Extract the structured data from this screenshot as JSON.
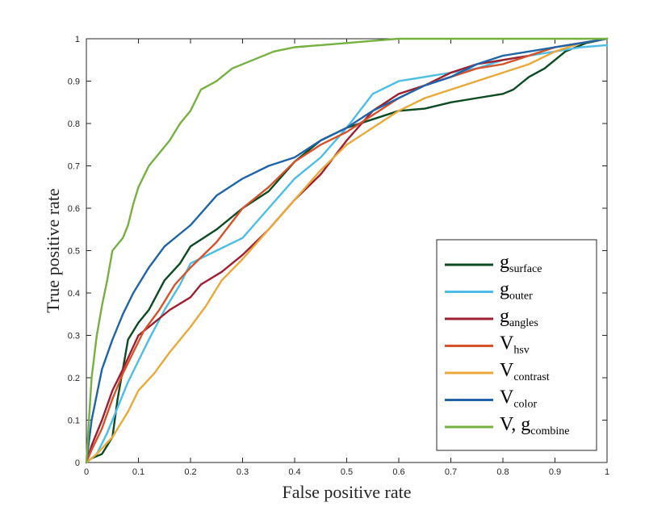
{
  "chart_data": {
    "type": "line",
    "title": "",
    "xlabel": "False positive rate",
    "ylabel": "True positive rate",
    "xlim": [
      0,
      1
    ],
    "ylim": [
      0,
      1
    ],
    "xticks": [
      "0",
      "0.1",
      "0.2",
      "0.3",
      "0.4",
      "0.5",
      "0.6",
      "0.7",
      "0.8",
      "0.9",
      "1"
    ],
    "yticks": [
      "0",
      "0.1",
      "0.2",
      "0.3",
      "0.4",
      "0.5",
      "0.6",
      "0.7",
      "0.8",
      "0.9",
      "1"
    ],
    "grid": false,
    "legend_position": "bottom-right",
    "series": [
      {
        "name": "g",
        "subscript": "surface",
        "color": "#0b4a23",
        "points": [
          [
            0,
            0
          ],
          [
            0.01,
            0.01
          ],
          [
            0.03,
            0.02
          ],
          [
            0.05,
            0.06
          ],
          [
            0.06,
            0.15
          ],
          [
            0.07,
            0.22
          ],
          [
            0.08,
            0.29
          ],
          [
            0.1,
            0.33
          ],
          [
            0.12,
            0.36
          ],
          [
            0.15,
            0.43
          ],
          [
            0.18,
            0.47
          ],
          [
            0.2,
            0.51
          ],
          [
            0.25,
            0.55
          ],
          [
            0.3,
            0.6
          ],
          [
            0.35,
            0.64
          ],
          [
            0.4,
            0.71
          ],
          [
            0.45,
            0.76
          ],
          [
            0.5,
            0.79
          ],
          [
            0.55,
            0.81
          ],
          [
            0.6,
            0.83
          ],
          [
            0.65,
            0.835
          ],
          [
            0.7,
            0.85
          ],
          [
            0.75,
            0.86
          ],
          [
            0.8,
            0.87
          ],
          [
            0.82,
            0.88
          ],
          [
            0.85,
            0.91
          ],
          [
            0.88,
            0.93
          ],
          [
            0.92,
            0.97
          ],
          [
            0.96,
            0.99
          ],
          [
            1,
            1
          ]
        ]
      },
      {
        "name": "g",
        "subscript": "outer",
        "color": "#4dbde6",
        "points": [
          [
            0,
            0
          ],
          [
            0.02,
            0.02
          ],
          [
            0.04,
            0.07
          ],
          [
            0.06,
            0.13
          ],
          [
            0.08,
            0.19
          ],
          [
            0.1,
            0.24
          ],
          [
            0.12,
            0.29
          ],
          [
            0.15,
            0.36
          ],
          [
            0.18,
            0.42
          ],
          [
            0.2,
            0.47
          ],
          [
            0.25,
            0.5
          ],
          [
            0.3,
            0.53
          ],
          [
            0.35,
            0.6
          ],
          [
            0.4,
            0.67
          ],
          [
            0.45,
            0.72
          ],
          [
            0.5,
            0.79
          ],
          [
            0.55,
            0.87
          ],
          [
            0.6,
            0.9
          ],
          [
            0.65,
            0.91
          ],
          [
            0.7,
            0.92
          ],
          [
            0.75,
            0.93
          ],
          [
            0.8,
            0.95
          ],
          [
            0.85,
            0.96
          ],
          [
            0.9,
            0.97
          ],
          [
            0.95,
            0.98
          ],
          [
            1,
            0.985
          ]
        ]
      },
      {
        "name": "g",
        "subscript": "angles",
        "color": "#9e1f30",
        "points": [
          [
            0,
            0
          ],
          [
            0.01,
            0.04
          ],
          [
            0.03,
            0.1
          ],
          [
            0.05,
            0.17
          ],
          [
            0.07,
            0.22
          ],
          [
            0.1,
            0.3
          ],
          [
            0.13,
            0.33
          ],
          [
            0.16,
            0.36
          ],
          [
            0.2,
            0.39
          ],
          [
            0.22,
            0.42
          ],
          [
            0.26,
            0.45
          ],
          [
            0.3,
            0.49
          ],
          [
            0.35,
            0.55
          ],
          [
            0.4,
            0.62
          ],
          [
            0.45,
            0.68
          ],
          [
            0.5,
            0.76
          ],
          [
            0.55,
            0.83
          ],
          [
            0.6,
            0.87
          ],
          [
            0.65,
            0.89
          ],
          [
            0.7,
            0.92
          ],
          [
            0.75,
            0.94
          ],
          [
            0.8,
            0.95
          ],
          [
            0.85,
            0.96
          ],
          [
            0.9,
            0.98
          ],
          [
            0.95,
            0.99
          ],
          [
            1,
            1
          ]
        ]
      },
      {
        "name": "V",
        "subscript": "hsv",
        "color": "#d4532a",
        "points": [
          [
            0,
            0
          ],
          [
            0.01,
            0.03
          ],
          [
            0.03,
            0.08
          ],
          [
            0.05,
            0.15
          ],
          [
            0.07,
            0.21
          ],
          [
            0.09,
            0.26
          ],
          [
            0.11,
            0.31
          ],
          [
            0.14,
            0.36
          ],
          [
            0.17,
            0.42
          ],
          [
            0.2,
            0.46
          ],
          [
            0.25,
            0.52
          ],
          [
            0.3,
            0.6
          ],
          [
            0.35,
            0.65
          ],
          [
            0.4,
            0.71
          ],
          [
            0.45,
            0.75
          ],
          [
            0.5,
            0.78
          ],
          [
            0.55,
            0.82
          ],
          [
            0.6,
            0.86
          ],
          [
            0.65,
            0.89
          ],
          [
            0.7,
            0.91
          ],
          [
            0.75,
            0.93
          ],
          [
            0.8,
            0.94
          ],
          [
            0.85,
            0.96
          ],
          [
            0.9,
            0.98
          ],
          [
            0.95,
            0.99
          ],
          [
            1,
            1
          ]
        ]
      },
      {
        "name": "V",
        "subscript": "contrast",
        "color": "#e9a93a",
        "points": [
          [
            0,
            0
          ],
          [
            0.02,
            0.02
          ],
          [
            0.05,
            0.06
          ],
          [
            0.08,
            0.12
          ],
          [
            0.1,
            0.17
          ],
          [
            0.13,
            0.21
          ],
          [
            0.16,
            0.26
          ],
          [
            0.2,
            0.32
          ],
          [
            0.23,
            0.37
          ],
          [
            0.26,
            0.43
          ],
          [
            0.3,
            0.48
          ],
          [
            0.35,
            0.55
          ],
          [
            0.4,
            0.62
          ],
          [
            0.45,
            0.69
          ],
          [
            0.5,
            0.75
          ],
          [
            0.55,
            0.79
          ],
          [
            0.6,
            0.83
          ],
          [
            0.65,
            0.86
          ],
          [
            0.7,
            0.88
          ],
          [
            0.75,
            0.9
          ],
          [
            0.8,
            0.92
          ],
          [
            0.85,
            0.94
          ],
          [
            0.9,
            0.97
          ],
          [
            0.95,
            0.99
          ],
          [
            1,
            1
          ]
        ]
      },
      {
        "name": "V",
        "subscript": "color",
        "color": "#1f63a8",
        "points": [
          [
            0,
            0
          ],
          [
            0.01,
            0.1
          ],
          [
            0.02,
            0.16
          ],
          [
            0.03,
            0.22
          ],
          [
            0.05,
            0.29
          ],
          [
            0.07,
            0.35
          ],
          [
            0.09,
            0.4
          ],
          [
            0.12,
            0.46
          ],
          [
            0.15,
            0.51
          ],
          [
            0.18,
            0.54
          ],
          [
            0.2,
            0.56
          ],
          [
            0.25,
            0.63
          ],
          [
            0.3,
            0.67
          ],
          [
            0.35,
            0.7
          ],
          [
            0.4,
            0.72
          ],
          [
            0.45,
            0.76
          ],
          [
            0.5,
            0.79
          ],
          [
            0.55,
            0.83
          ],
          [
            0.6,
            0.86
          ],
          [
            0.65,
            0.89
          ],
          [
            0.7,
            0.91
          ],
          [
            0.75,
            0.94
          ],
          [
            0.8,
            0.96
          ],
          [
            0.85,
            0.97
          ],
          [
            0.9,
            0.98
          ],
          [
            0.95,
            0.99
          ],
          [
            1,
            1
          ]
        ]
      },
      {
        "name": "V, g",
        "subscript": "combine",
        "color": "#76b041",
        "points": [
          [
            0,
            0
          ],
          [
            0.005,
            0.1
          ],
          [
            0.01,
            0.2
          ],
          [
            0.02,
            0.3
          ],
          [
            0.03,
            0.37
          ],
          [
            0.04,
            0.43
          ],
          [
            0.05,
            0.5
          ],
          [
            0.07,
            0.53
          ],
          [
            0.08,
            0.56
          ],
          [
            0.09,
            0.61
          ],
          [
            0.1,
            0.65
          ],
          [
            0.12,
            0.7
          ],
          [
            0.14,
            0.73
          ],
          [
            0.16,
            0.76
          ],
          [
            0.18,
            0.8
          ],
          [
            0.2,
            0.83
          ],
          [
            0.22,
            0.88
          ],
          [
            0.25,
            0.9
          ],
          [
            0.28,
            0.93
          ],
          [
            0.32,
            0.95
          ],
          [
            0.36,
            0.97
          ],
          [
            0.4,
            0.98
          ],
          [
            0.45,
            0.985
          ],
          [
            0.5,
            0.99
          ],
          [
            0.55,
            0.995
          ],
          [
            0.6,
            1
          ],
          [
            1,
            1
          ]
        ]
      }
    ]
  }
}
